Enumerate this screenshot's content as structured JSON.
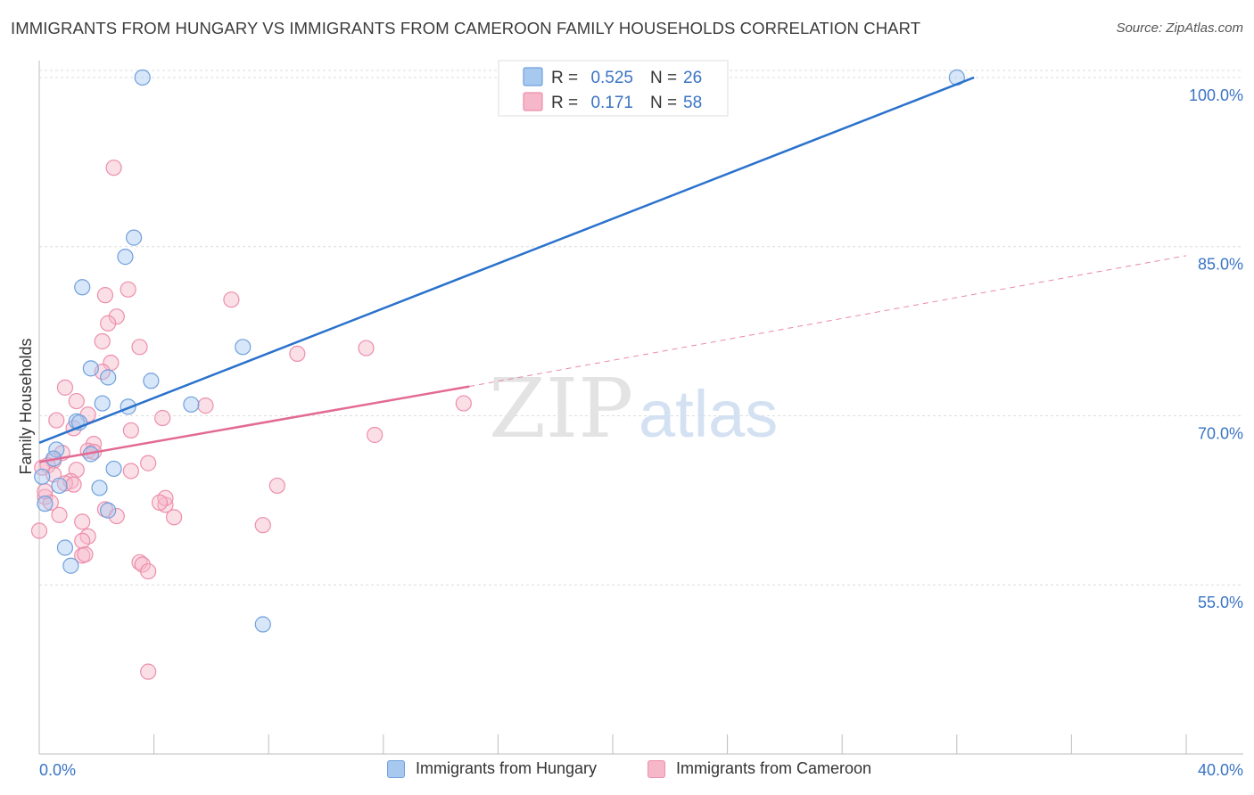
{
  "title": "IMMIGRANTS FROM HUNGARY VS IMMIGRANTS FROM CAMEROON FAMILY HOUSEHOLDS CORRELATION CHART",
  "source": "Source: ZipAtlas.com",
  "watermark": {
    "zip": "ZIP",
    "atlas": "atlas"
  },
  "colors": {
    "blue_fill": "#a7c8ef",
    "blue_stroke": "#6fa0dc",
    "blue_line": "#2a72cc",
    "pink_fill": "#f6b7ca",
    "pink_stroke": "#ec8fab",
    "pink_line": "#e36a93",
    "value_text": "#3a74c4"
  },
  "legend_top": [
    {
      "r_label": "R =",
      "r_value": "0.525",
      "n_label": "N =",
      "n_value": "26"
    },
    {
      "r_label": "R =",
      "r_value": "0.171",
      "n_label": "N =",
      "n_value": "58"
    }
  ],
  "legend_bottom": [
    "Immigrants from Hungary",
    "Immigrants from Cameroon"
  ],
  "chart_data": {
    "type": "scatter",
    "title": "IMMIGRANTS FROM HUNGARY VS IMMIGRANTS FROM CAMEROON FAMILY HOUSEHOLDS CORRELATION CHART",
    "xlabel": "",
    "ylabel": "Family Households",
    "xlim": [
      0,
      40
    ],
    "ylim": [
      40,
      101.5
    ],
    "x_tick_labels": [
      "0.0%",
      "40.0%"
    ],
    "y_ticks": [
      55,
      70,
      85,
      100
    ],
    "y_tick_labels": [
      "55.0%",
      "70.0%",
      "85.0%",
      "100.0%"
    ],
    "grid": true,
    "series": [
      {
        "name": "Immigrants from Hungary",
        "r": 0.525,
        "n": 26,
        "points": [
          [
            3.6,
            100.0
          ],
          [
            32.0,
            100.0
          ],
          [
            3.3,
            85.8
          ],
          [
            3.0,
            84.1
          ],
          [
            1.5,
            81.4
          ],
          [
            7.1,
            76.1
          ],
          [
            1.8,
            74.2
          ],
          [
            2.4,
            73.4
          ],
          [
            3.9,
            73.1
          ],
          [
            2.2,
            71.1
          ],
          [
            3.1,
            70.8
          ],
          [
            5.3,
            71.0
          ],
          [
            1.3,
            69.5
          ],
          [
            1.4,
            69.4
          ],
          [
            0.6,
            67.0
          ],
          [
            1.8,
            66.6
          ],
          [
            0.5,
            66.2
          ],
          [
            2.6,
            65.3
          ],
          [
            0.1,
            64.6
          ],
          [
            2.1,
            63.6
          ],
          [
            0.7,
            63.8
          ],
          [
            0.2,
            62.2
          ],
          [
            2.4,
            61.6
          ],
          [
            0.9,
            58.3
          ],
          [
            1.1,
            56.7
          ],
          [
            7.8,
            51.5
          ]
        ],
        "trend": {
          "x0": 0,
          "y0": 67.6,
          "x1": 32.6,
          "y1": 100.0
        }
      },
      {
        "name": "Immigrants from Cameroon",
        "r": 0.171,
        "n": 58,
        "points": [
          [
            2.6,
            92.0
          ],
          [
            3.1,
            81.2
          ],
          [
            2.3,
            80.7
          ],
          [
            6.7,
            80.3
          ],
          [
            2.7,
            78.8
          ],
          [
            2.4,
            78.2
          ],
          [
            2.2,
            76.6
          ],
          [
            3.5,
            76.1
          ],
          [
            11.4,
            76.0
          ],
          [
            9.0,
            75.5
          ],
          [
            2.5,
            74.7
          ],
          [
            2.2,
            73.9
          ],
          [
            0.9,
            72.5
          ],
          [
            1.3,
            71.3
          ],
          [
            5.8,
            70.9
          ],
          [
            14.8,
            71.1
          ],
          [
            1.7,
            70.1
          ],
          [
            0.6,
            69.6
          ],
          [
            4.3,
            69.8
          ],
          [
            1.2,
            68.9
          ],
          [
            3.2,
            68.7
          ],
          [
            11.7,
            68.3
          ],
          [
            1.9,
            67.5
          ],
          [
            0.8,
            66.7
          ],
          [
            1.7,
            66.9
          ],
          [
            0.5,
            66.0
          ],
          [
            3.8,
            65.8
          ],
          [
            0.3,
            65.6
          ],
          [
            1.3,
            65.2
          ],
          [
            3.2,
            65.1
          ],
          [
            1.1,
            64.2
          ],
          [
            0.9,
            64.0
          ],
          [
            1.2,
            63.9
          ],
          [
            8.3,
            63.8
          ],
          [
            0.2,
            62.8
          ],
          [
            0.4,
            62.3
          ],
          [
            4.4,
            62.1
          ],
          [
            4.4,
            62.7
          ],
          [
            2.3,
            61.7
          ],
          [
            0.7,
            61.2
          ],
          [
            2.7,
            61.1
          ],
          [
            4.7,
            61.0
          ],
          [
            1.5,
            60.6
          ],
          [
            7.8,
            60.3
          ],
          [
            0.0,
            59.8
          ],
          [
            1.7,
            59.3
          ],
          [
            1.5,
            58.9
          ],
          [
            1.5,
            57.6
          ],
          [
            1.6,
            57.7
          ],
          [
            3.5,
            57.0
          ],
          [
            3.6,
            56.8
          ],
          [
            3.8,
            56.2
          ],
          [
            3.8,
            47.3
          ],
          [
            0.2,
            63.3
          ],
          [
            0.5,
            64.8
          ],
          [
            0.1,
            65.4
          ],
          [
            1.9,
            66.8
          ],
          [
            4.2,
            62.3
          ]
        ],
        "trend": {
          "x0": 0,
          "y0": 65.9,
          "x1": 15.0,
          "y1": 72.6
        },
        "trend_extended": {
          "x0": 15.0,
          "y0": 72.6,
          "x1": 40.0,
          "y1": 84.2
        }
      }
    ]
  }
}
